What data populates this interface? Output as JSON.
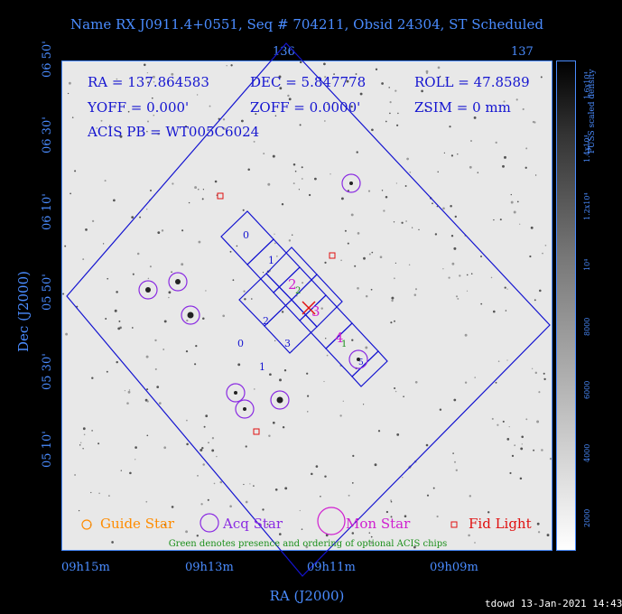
{
  "title": "Name RX J0911.4+0551, Seq # 704211, Obsid 24304, ST Scheduled",
  "top_axis": {
    "ticks": [
      "136",
      "137"
    ]
  },
  "bottom_axis": {
    "ticks": [
      "09h15m",
      "09h13m",
      "09h11m",
      "09h09m"
    ],
    "label": "RA (J2000)"
  },
  "left_axis": {
    "ticks": [
      "06 50'",
      "06 30'",
      "06 10'",
      "05 50'",
      "05 30'",
      "05 10'"
    ],
    "label": "Dec (J2000)"
  },
  "info": {
    "ra": "RA = 137.864583",
    "dec": "DEC = 5.847778",
    "roll": "ROLL = 47.8589",
    "yoff": "YOFF =   0.000'",
    "zoff": "ZOFF =   0.0000'",
    "zsim": "ZSIM = 0 mm",
    "acis_pb": "ACIS PB = WT005C6024"
  },
  "chips": {
    "s_labels": [
      "0",
      "1",
      "2",
      "3",
      "4",
      "5"
    ],
    "i_labels": [
      "2",
      "0",
      "3",
      "1"
    ],
    "optional_labels": [
      "2",
      "1"
    ]
  },
  "legend": {
    "guide": "Guide Star",
    "acq": "Acq Star",
    "mon": "Mon Star",
    "fid": "Fid Light",
    "note": "Green denotes presence and ordering of optional ACIS chips"
  },
  "colorbar": {
    "title": "PUSS scaled density",
    "ticks": [
      "1.6x10⁴",
      "1.4x10⁴",
      "1.2x10⁴",
      "10⁴",
      "8000",
      "6000",
      "4000",
      "2000"
    ]
  },
  "stamp": "tdowd 13-Jan-2021 14:43",
  "colors": {
    "axis": "#4a8cff",
    "field": "#1414d0",
    "acq": "#8a2be2",
    "guide": "#ff8c00",
    "mon": "#d020d0",
    "fid": "#e01010",
    "optional": "#1a8f1a"
  }
}
